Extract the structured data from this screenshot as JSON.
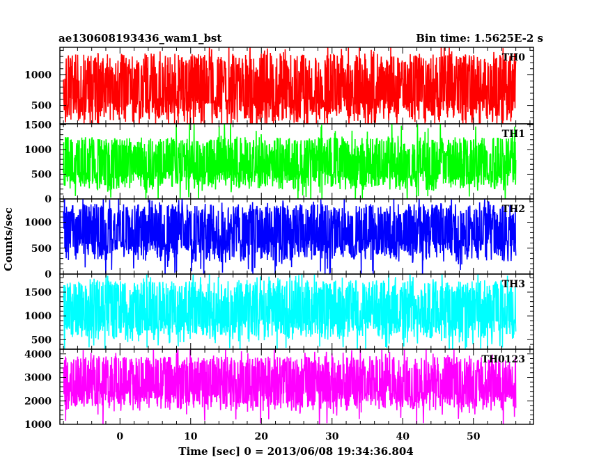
{
  "chart_data": {
    "type": "line",
    "title_left": "ae130608193436_wam1_bst",
    "title_right": "Bin time: 1.5625E-2 s",
    "xlabel": "Time [sec] 0 = 2013/06/08 19:34:36.804",
    "ylabel": "Counts/sec",
    "xlim": [
      -8.5,
      58.5
    ],
    "x_ticks": [
      "0",
      "10",
      "20",
      "30",
      "40",
      "50"
    ],
    "x_tick_values": [
      0,
      10,
      20,
      30,
      40,
      50
    ],
    "data_range": [
      -8,
      56
    ],
    "grid": false,
    "panels": [
      {
        "name": "TH0",
        "color": "#ff0000",
        "ylim": [
          200,
          1450
        ],
        "y_ticks": [
          "500",
          "1000"
        ],
        "y_tick_values": [
          500,
          1000
        ],
        "mean": 700,
        "typical_low": 180,
        "typical_high": 1350
      },
      {
        "name": "TH1",
        "color": "#00ff00",
        "ylim": [
          0,
          1520
        ],
        "y_ticks": [
          "0",
          "500",
          "1000",
          "1500"
        ],
        "y_tick_values": [
          0,
          500,
          1000,
          1500
        ],
        "mean": 620,
        "typical_low": 150,
        "typical_high": 1250
      },
      {
        "name": "TH2",
        "color": "#0000ff",
        "ylim": [
          0,
          1450
        ],
        "y_ticks": [
          "0",
          "500",
          "1000"
        ],
        "y_tick_values": [
          0,
          500,
          1000
        ],
        "mean": 740,
        "typical_low": 200,
        "typical_high": 1350
      },
      {
        "name": "TH3",
        "color": "#00ffff",
        "ylim": [
          300,
          1880
        ],
        "y_ticks": [
          "500",
          "1000",
          "1500"
        ],
        "y_tick_values": [
          500,
          1000,
          1500
        ],
        "mean": 1000,
        "typical_low": 450,
        "typical_high": 1750
      },
      {
        "name": "TH0123",
        "color": "#ff00ff",
        "ylim": [
          1000,
          4200
        ],
        "y_ticks": [
          "1000",
          "2000",
          "3000",
          "4000"
        ],
        "y_tick_values": [
          1000,
          2000,
          3000,
          4000
        ],
        "mean": 2550,
        "typical_low": 1500,
        "typical_high": 3900
      }
    ]
  }
}
